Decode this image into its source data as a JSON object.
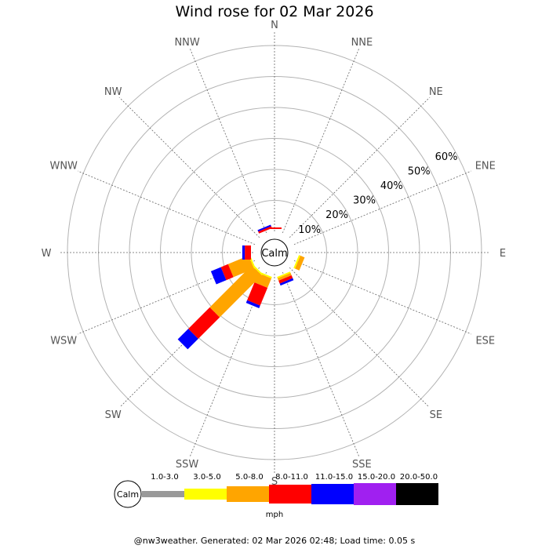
{
  "title": "Wind rose for 02 Mar 2026",
  "footer": "@nw3weather. Generated: 02 Mar 2026 02:48; Load time: 0.05 s",
  "chart_data": {
    "type": "wind-rose",
    "directions": [
      "N",
      "NNE",
      "NE",
      "ENE",
      "E",
      "ESE",
      "SE",
      "SSE",
      "S",
      "SSW",
      "SW",
      "WSW",
      "W",
      "WNW",
      "NW",
      "NNW"
    ],
    "radial_ticks": [
      "10%",
      "20%",
      "30%",
      "40%",
      "50%",
      "60%"
    ],
    "radial_max_percent": 60,
    "center_label": "Calm",
    "units": "mph",
    "speed_bins": [
      {
        "label": "1.0-3.0",
        "color": "#999999"
      },
      {
        "label": "3.0-5.0",
        "color": "#ffff00"
      },
      {
        "label": "5.0-8.0",
        "color": "#ffa500"
      },
      {
        "label": "8.0-11.0",
        "color": "#ff0000"
      },
      {
        "label": "11.0-15.0",
        "color": "#0000ff"
      },
      {
        "label": "15.0-20.0",
        "color": "#a020f0"
      },
      {
        "label": "20.0-50.0",
        "color": "#000000"
      }
    ],
    "frequencies_percent": {
      "N": [
        0,
        0,
        0,
        0.5,
        0,
        0,
        0
      ],
      "NNE": [
        0,
        0,
        0,
        0,
        0,
        0,
        0
      ],
      "NE": [
        0,
        0,
        0,
        0,
        0,
        0,
        0
      ],
      "ENE": [
        0,
        0,
        0,
        0,
        0,
        0,
        0
      ],
      "E": [
        0,
        0,
        0,
        0,
        0,
        0,
        0
      ],
      "ESE": [
        0,
        0.5,
        1.5,
        0,
        0,
        0,
        0
      ],
      "SE": [
        0,
        0,
        0,
        0,
        0,
        0,
        0
      ],
      "SSE": [
        0,
        0.5,
        0.8,
        1.0,
        0.7,
        0,
        0
      ],
      "S": [
        0,
        0,
        0,
        0,
        0,
        0,
        0
      ],
      "SSW": [
        0,
        0.5,
        3.3,
        6.2,
        0.9,
        0,
        0
      ],
      "SW": [
        0,
        0.5,
        19.2,
        9.8,
        4.8,
        0,
        0
      ],
      "WSW": [
        0,
        0.5,
        7.2,
        2.5,
        3.5,
        0,
        0
      ],
      "W": [
        0,
        0,
        0,
        2.0,
        0.8,
        0,
        0
      ],
      "WNW": [
        0,
        0,
        0,
        0,
        0,
        0,
        0
      ],
      "NW": [
        0,
        0,
        0,
        0,
        0,
        0,
        0
      ],
      "NNW": [
        0,
        0,
        0,
        0.7,
        0.5,
        0,
        0
      ]
    }
  }
}
